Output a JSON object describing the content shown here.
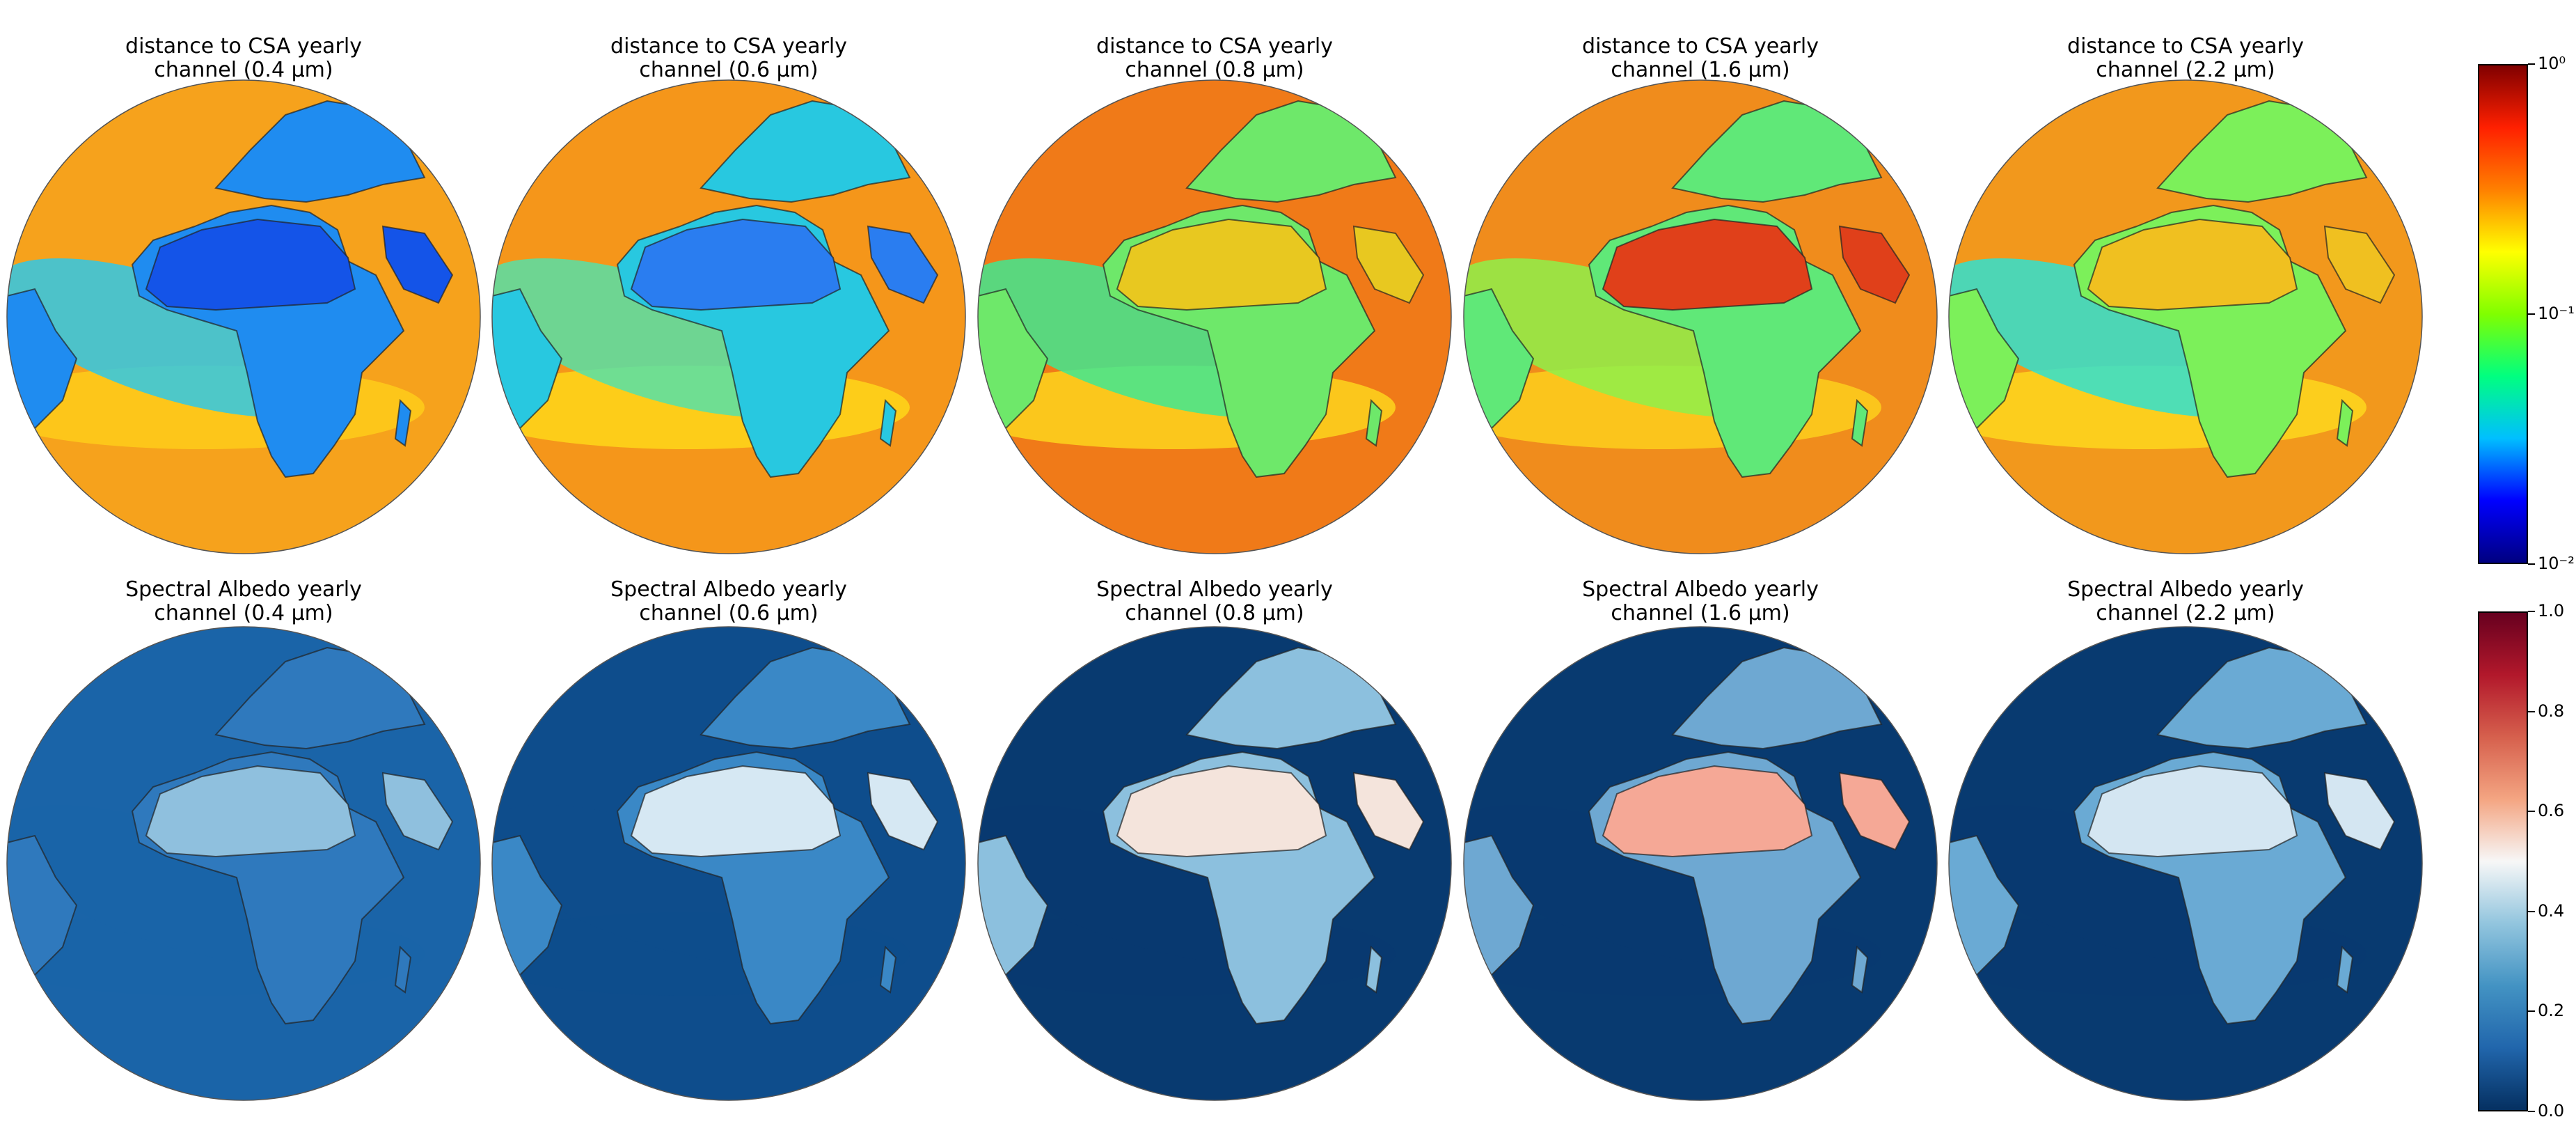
{
  "figure": {
    "rows": [
      {
        "name": "distance-to-csa",
        "panels": [
          {
            "title_line1": "distance to CSA yearly",
            "title_line2": "channel (0.4 μm)",
            "ocean": "#f6a21c",
            "land": "#1f8cf0",
            "sahara": "#1454e8",
            "band": "#2fc8e8",
            "lat_band": "#ffd21a"
          },
          {
            "title_line1": "distance to CSA yearly",
            "title_line2": "channel (0.6 μm)",
            "ocean": "#f5961a",
            "land": "#28c8e0",
            "sahara": "#2a7df0",
            "band": "#56e0a8",
            "lat_band": "#ffdf1a"
          },
          {
            "title_line1": "distance to CSA yearly",
            "title_line2": "channel (0.8 μm)",
            "ocean": "#f07a18",
            "land": "#6ee86a",
            "sahara": "#e8c820",
            "band": "#40e890",
            "lat_band": "#ffe21e"
          },
          {
            "title_line1": "distance to CSA yearly",
            "title_line2": "channel (1.6 μm)",
            "ocean": "#f08c1c",
            "land": "#60e878",
            "sahara": "#e0401a",
            "band": "#8ef04a",
            "lat_band": "#ffd81c"
          },
          {
            "title_line1": "distance to CSA yearly",
            "title_line2": "channel (2.2 μm)",
            "ocean": "#f2981c",
            "land": "#7cf05a",
            "sahara": "#f0c020",
            "band": "#30e0d0",
            "lat_band": "#ffe01e"
          }
        ],
        "colorbar": {
          "colors": [
            "#000080",
            "#0000ff",
            "#00bfff",
            "#00ff80",
            "#80ff00",
            "#ffff00",
            "#ff8000",
            "#ff2000",
            "#800000"
          ],
          "ticks": [
            {
              "label": "10⁰",
              "pos": 1.0
            },
            {
              "label": "10⁻¹",
              "pos": 0.5
            },
            {
              "label": "10⁻²",
              "pos": 0.0
            }
          ]
        }
      },
      {
        "name": "spectral-albedo",
        "panels": [
          {
            "title_line1": "Spectral Albedo yearly",
            "title_line2": "channel (0.4 μm)",
            "ocean": "#1a64a8",
            "land": "#2f79bd",
            "sahara": "#8fc0de",
            "band": "#1a64a8",
            "lat_band": "#1a64a8"
          },
          {
            "title_line1": "Spectral Albedo yearly",
            "title_line2": "channel (0.6 μm)",
            "ocean": "#0e4d8c",
            "land": "#3a88c6",
            "sahara": "#d6e8f3",
            "band": "#0e4d8c",
            "lat_band": "#0e4d8c"
          },
          {
            "title_line1": "Spectral Albedo yearly",
            "title_line2": "channel (0.8 μm)",
            "ocean": "#083a70",
            "land": "#8cc0de",
            "sahara": "#f4e4dc",
            "band": "#083a70",
            "lat_band": "#083a70"
          },
          {
            "title_line1": "Spectral Albedo yearly",
            "title_line2": "channel (1.6 μm)",
            "ocean": "#083a70",
            "land": "#6ea8d2",
            "sahara": "#f5a896",
            "band": "#083a70",
            "lat_band": "#083a70"
          },
          {
            "title_line1": "Spectral Albedo yearly",
            "title_line2": "channel (2.2 μm)",
            "ocean": "#083a70",
            "land": "#6aaad4",
            "sahara": "#d4e6f2",
            "band": "#083a70",
            "lat_band": "#083a70"
          }
        ],
        "colorbar": {
          "colors": [
            "#053061",
            "#2166ac",
            "#4393c3",
            "#92c5de",
            "#f7f7f7",
            "#f4a582",
            "#d6604d",
            "#b2182b",
            "#67001f"
          ],
          "ticks": [
            {
              "label": "1.0",
              "pos": 1.0
            },
            {
              "label": "0.8",
              "pos": 0.8
            },
            {
              "label": "0.6",
              "pos": 0.6
            },
            {
              "label": "0.4",
              "pos": 0.4
            },
            {
              "label": "0.2",
              "pos": 0.2
            },
            {
              "label": "0.0",
              "pos": 0.0
            }
          ]
        }
      }
    ]
  }
}
